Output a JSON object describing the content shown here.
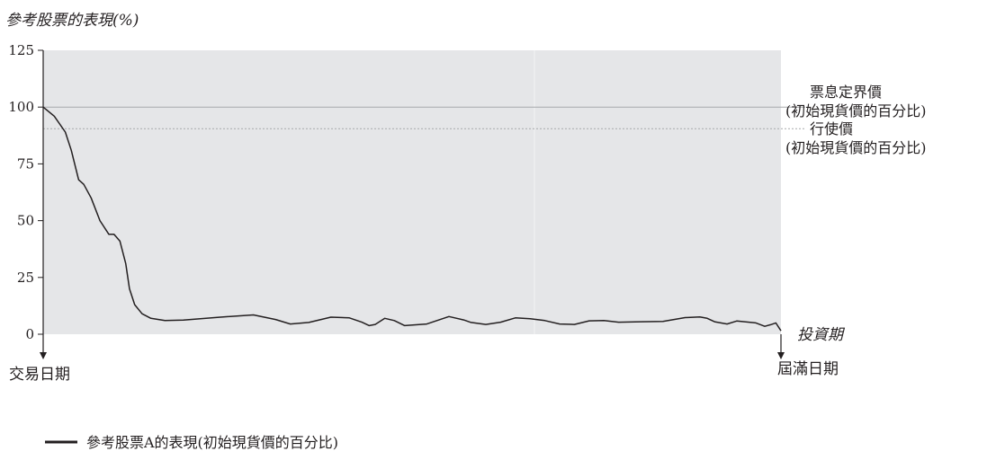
{
  "chart_data": {
    "type": "line",
    "y_axis_title": "參考股票的表現(%)",
    "x_axis_title": "投資期",
    "x_start_label": "交易日期",
    "x_end_label": "屆滿日期",
    "ylim": [
      0,
      125
    ],
    "yticks": [
      "125",
      "100",
      "75",
      "50",
      "25",
      "0"
    ],
    "x_range": [
      0,
      100
    ],
    "grid": false,
    "plot_background": "#e5e6e8",
    "reference_lines": [
      {
        "name": "coupon_barrier",
        "value": 100,
        "label_line1": "票息定界價",
        "label_line2": "(初始現貨價的百分比)",
        "style": "solid",
        "color": "#a7a9ac"
      },
      {
        "name": "strike",
        "value": 90.5,
        "label_line1": "行使價",
        "label_line2": "(初始現貨價的百分比)",
        "style": "dotted",
        "color": "#a7a9ac"
      }
    ],
    "series": [
      {
        "name": "參考股票A的表現(初始現貨價的百分比)",
        "color": "#231f20",
        "x": [
          0,
          1.5,
          3,
          3.8,
          4.8,
          5.5,
          6.5,
          7.7,
          8.9,
          9.6,
          10.4,
          11.2,
          11.7,
          12.4,
          13.4,
          14.6,
          16.5,
          19,
          24,
          28.5,
          31.5,
          33.5,
          36,
          39,
          41.5,
          43.2,
          44.2,
          45,
          46.3,
          47.6,
          49,
          52,
          55,
          57,
          58,
          60,
          62,
          64,
          66,
          68,
          70,
          72,
          74,
          76,
          78,
          81,
          84,
          87,
          89,
          90,
          91,
          92.7,
          94,
          96.6,
          97.8,
          98.6,
          99.3,
          100
        ],
        "values": [
          100,
          96,
          89,
          81,
          68,
          66,
          60,
          50,
          44,
          44,
          41,
          31,
          20,
          13,
          9,
          7,
          6,
          6.2,
          7.5,
          8.5,
          6.5,
          4.5,
          5.2,
          7.5,
          7.2,
          5.3,
          3.8,
          4.3,
          7,
          6,
          3.8,
          4.5,
          7.8,
          6.3,
          5.2,
          4.3,
          5.3,
          7.2,
          6.8,
          6.0,
          4.5,
          4.3,
          5.9,
          6.0,
          5.3,
          5.5,
          5.6,
          7.3,
          7.6,
          7.0,
          5.5,
          4.5,
          5.8,
          5.0,
          3.5,
          4.2,
          5.0,
          1.5
        ]
      }
    ],
    "legend_position": "bottom-left"
  }
}
